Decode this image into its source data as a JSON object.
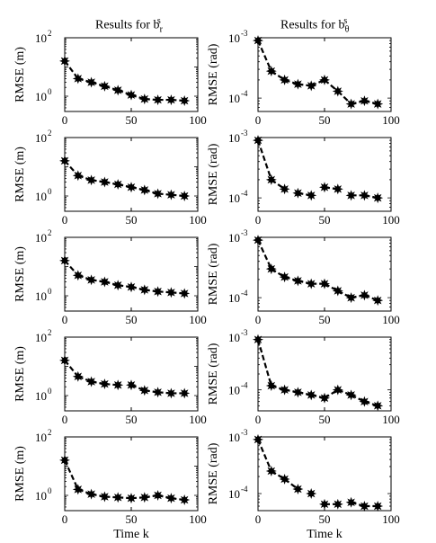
{
  "column_titles": [
    {
      "text": "Results for b",
      "sup": "s",
      "sub": "r"
    },
    {
      "text": "Results for b",
      "sup": "s",
      "sub": "θ"
    }
  ],
  "chart_data": [
    {
      "type": "line",
      "panel": "r1-left",
      "ylabel": "RMSE (m)",
      "yscale": "log",
      "ylim": [
        0.3,
        100
      ],
      "xlim": [
        0,
        100
      ],
      "yticks": [
        {
          "v": 1,
          "label": "10",
          "exp": "0"
        },
        {
          "v": 100,
          "label": "10",
          "exp": "2"
        }
      ],
      "xticks": [
        0,
        50,
        100
      ],
      "xtick_labels": [
        "0",
        "50",
        "100"
      ],
      "xlabel": "",
      "x": [
        0,
        10,
        20,
        30,
        40,
        50,
        60,
        70,
        80,
        90
      ],
      "segments": [
        [
          0,
          1
        ],
        [
          1,
          2
        ],
        [
          2,
          3
        ],
        [
          3,
          4
        ],
        [
          4,
          5
        ],
        [
          5,
          6
        ],
        [
          6,
          7
        ],
        [
          7,
          8
        ],
        [
          8,
          9
        ]
      ],
      "values": [
        16,
        4,
        3,
        2.2,
        1.6,
        1.1,
        0.8,
        0.75,
        0.75,
        0.7
      ]
    },
    {
      "type": "line",
      "panel": "r1-right",
      "ylabel": "RMSE (rad)",
      "yscale": "log",
      "ylim": [
        6e-05,
        0.001
      ],
      "xlim": [
        0,
        100
      ],
      "yticks": [
        {
          "v": 0.0001,
          "label": "10",
          "exp": "-4"
        },
        {
          "v": 0.001,
          "label": "10",
          "exp": "-3"
        }
      ],
      "xticks": [
        0,
        50,
        100
      ],
      "xtick_labels": [
        "0",
        "50",
        "100"
      ],
      "xlabel": "",
      "x": [
        0,
        10,
        20,
        30,
        40,
        50,
        60,
        70,
        80,
        90
      ],
      "segments": [
        [
          0,
          1
        ],
        [
          1,
          2
        ],
        [
          2,
          3
        ],
        [
          3,
          4
        ],
        [
          4,
          5
        ],
        [
          5,
          6
        ],
        [
          6,
          7
        ],
        [
          7,
          8
        ],
        [
          8,
          9
        ]
      ],
      "values": [
        0.0009,
        0.00028,
        0.0002,
        0.00017,
        0.00016,
        0.0002,
        0.00013,
        8e-05,
        9e-05,
        8e-05
      ]
    },
    {
      "type": "line",
      "panel": "r2-left",
      "ylabel": "RMSE (m)",
      "yscale": "log",
      "ylim": [
        0.3,
        100
      ],
      "xlim": [
        0,
        100
      ],
      "yticks": [
        {
          "v": 1,
          "label": "10",
          "exp": "0"
        },
        {
          "v": 100,
          "label": "10",
          "exp": "2"
        }
      ],
      "xticks": [
        0,
        50,
        100
      ],
      "xtick_labels": [
        "0",
        "50",
        "100"
      ],
      "xlabel": "",
      "x": [
        0,
        10,
        20,
        30,
        40,
        50,
        60,
        70,
        80,
        90
      ],
      "segments": [
        [
          0,
          1
        ],
        [
          1,
          2
        ],
        [
          2,
          3
        ],
        [
          3,
          4
        ],
        [
          4,
          5
        ],
        [
          5,
          6
        ],
        [
          6,
          7
        ],
        [
          7,
          8
        ],
        [
          8,
          9
        ]
      ],
      "values": [
        16,
        5,
        3.5,
        3,
        2.5,
        2,
        1.6,
        1.2,
        1.1,
        1
      ]
    },
    {
      "type": "line",
      "panel": "r2-right",
      "ylabel": "RMSE (rad)",
      "yscale": "log",
      "ylim": [
        6e-05,
        0.001
      ],
      "xlim": [
        0,
        100
      ],
      "yticks": [
        {
          "v": 0.0001,
          "label": "10",
          "exp": "-4"
        },
        {
          "v": 0.001,
          "label": "10",
          "exp": "-3"
        }
      ],
      "xticks": [
        0,
        50,
        100
      ],
      "xtick_labels": [
        "0",
        "50",
        "100"
      ],
      "xlabel": "",
      "x": [
        0,
        10,
        20,
        30,
        40,
        50,
        60,
        70,
        80,
        90
      ],
      "segments": [
        [
          0,
          1
        ],
        [
          1,
          2
        ],
        [
          3,
          4
        ],
        [
          5,
          6
        ],
        [
          7,
          8
        ],
        [
          8,
          9
        ]
      ],
      "values": [
        0.0009,
        0.0002,
        0.00014,
        0.00012,
        0.00011,
        0.00015,
        0.00014,
        0.00011,
        0.00011,
        0.0001
      ]
    },
    {
      "type": "line",
      "panel": "r3-left",
      "ylabel": "RMSE (m)",
      "yscale": "log",
      "ylim": [
        0.3,
        100
      ],
      "xlim": [
        0,
        100
      ],
      "yticks": [
        {
          "v": 1,
          "label": "10",
          "exp": "0"
        },
        {
          "v": 100,
          "label": "10",
          "exp": "2"
        }
      ],
      "xticks": [
        0,
        50,
        100
      ],
      "xtick_labels": [
        "0",
        "50",
        "100"
      ],
      "xlabel": "",
      "x": [
        0,
        10,
        20,
        30,
        40,
        50,
        60,
        70,
        80,
        90
      ],
      "segments": [
        [
          0,
          1
        ],
        [
          1,
          2
        ],
        [
          2,
          3
        ],
        [
          3,
          4
        ],
        [
          4,
          5
        ],
        [
          5,
          6
        ],
        [
          6,
          7
        ],
        [
          7,
          8
        ],
        [
          8,
          9
        ]
      ],
      "values": [
        16,
        5,
        3.5,
        3,
        2.3,
        2,
        1.6,
        1.4,
        1.3,
        1.2
      ]
    },
    {
      "type": "line",
      "panel": "r3-right",
      "ylabel": "RMSE (rad)",
      "yscale": "log",
      "ylim": [
        6e-05,
        0.001
      ],
      "xlim": [
        0,
        100
      ],
      "yticks": [
        {
          "v": 0.0001,
          "label": "10",
          "exp": "-4"
        },
        {
          "v": 0.001,
          "label": "10",
          "exp": "-3"
        }
      ],
      "xticks": [
        0,
        50,
        100
      ],
      "xtick_labels": [
        "0",
        "50",
        "100"
      ],
      "xlabel": "",
      "x": [
        0,
        10,
        20,
        30,
        40,
        50,
        60,
        70,
        80,
        90
      ],
      "segments": [
        [
          0,
          1
        ],
        [
          1,
          2
        ],
        [
          2,
          3
        ],
        [
          3,
          4
        ],
        [
          4,
          5
        ],
        [
          5,
          6
        ],
        [
          6,
          7
        ],
        [
          7,
          8
        ],
        [
          8,
          9
        ]
      ],
      "values": [
        0.0009,
        0.0003,
        0.00022,
        0.00019,
        0.00017,
        0.00017,
        0.00013,
        0.0001,
        0.00011,
        9e-05
      ]
    },
    {
      "type": "line",
      "panel": "r4-left",
      "ylabel": "RMSE (m)",
      "yscale": "log",
      "ylim": [
        0.3,
        100
      ],
      "xlim": [
        0,
        100
      ],
      "yticks": [
        {
          "v": 1,
          "label": "10",
          "exp": "0"
        },
        {
          "v": 100,
          "label": "10",
          "exp": "2"
        }
      ],
      "xticks": [
        0,
        50,
        100
      ],
      "xtick_labels": [
        "0",
        "50",
        "100"
      ],
      "xlabel": "",
      "x": [
        0,
        10,
        20,
        30,
        40,
        50,
        60,
        70,
        80,
        90
      ],
      "segments": [
        [
          0,
          1
        ],
        [
          1,
          2
        ],
        [
          2,
          3
        ],
        [
          3,
          4
        ],
        [
          5,
          6
        ],
        [
          6,
          7
        ],
        [
          7,
          8
        ],
        [
          8,
          9
        ]
      ],
      "values": [
        16,
        4.5,
        3,
        2.5,
        2.3,
        2.3,
        1.5,
        1.3,
        1.2,
        1.2
      ]
    },
    {
      "type": "line",
      "panel": "r4-right",
      "ylabel": "RMSE (rad)",
      "yscale": "log",
      "ylim": [
        4e-05,
        0.001
      ],
      "xlim": [
        0,
        100
      ],
      "yticks": [
        {
          "v": 0.0001,
          "label": "10",
          "exp": "-4"
        },
        {
          "v": 0.001,
          "label": "10",
          "exp": "-3"
        }
      ],
      "xticks": [
        0,
        50,
        100
      ],
      "xtick_labels": [
        "0",
        "50",
        "100"
      ],
      "xlabel": "",
      "x": [
        0,
        10,
        20,
        30,
        40,
        50,
        60,
        70,
        80,
        90
      ],
      "segments": [
        [
          0,
          1
        ],
        [
          1,
          2
        ],
        [
          2,
          3
        ],
        [
          3,
          4
        ],
        [
          4,
          5
        ],
        [
          5,
          6
        ],
        [
          6,
          7
        ],
        [
          7,
          8
        ],
        [
          8,
          9
        ]
      ],
      "values": [
        0.0009,
        0.00012,
        0.0001,
        9e-05,
        8e-05,
        7e-05,
        0.0001,
        8e-05,
        6e-05,
        5e-05
      ]
    },
    {
      "type": "line",
      "panel": "r5-left",
      "ylabel": "RMSE (m)",
      "yscale": "log",
      "ylim": [
        0.3,
        100
      ],
      "xlim": [
        0,
        100
      ],
      "yticks": [
        {
          "v": 1,
          "label": "10",
          "exp": "0"
        },
        {
          "v": 100,
          "label": "10",
          "exp": "2"
        }
      ],
      "xticks": [
        0,
        50,
        100
      ],
      "xtick_labels": [
        "0",
        "50",
        "100"
      ],
      "xlabel": "Time k",
      "x": [
        0,
        10,
        20,
        30,
        40,
        50,
        60,
        70,
        80,
        90
      ],
      "segments": [
        [
          0,
          1
        ],
        [
          1,
          2
        ],
        [
          2,
          3
        ],
        [
          3,
          4
        ],
        [
          4,
          5
        ],
        [
          5,
          6
        ],
        [
          6,
          7
        ],
        [
          7,
          8
        ],
        [
          8,
          9
        ]
      ],
      "values": [
        16,
        1.6,
        1.1,
        0.9,
        0.85,
        0.8,
        0.85,
        1,
        0.8,
        0.7
      ]
    },
    {
      "type": "line",
      "panel": "r5-right",
      "ylabel": "RMSE (rad)",
      "yscale": "log",
      "ylim": [
        5e-05,
        0.001
      ],
      "xlim": [
        0,
        100
      ],
      "yticks": [
        {
          "v": 0.0001,
          "label": "10",
          "exp": "-4"
        },
        {
          "v": 0.001,
          "label": "10",
          "exp": "-3"
        }
      ],
      "xticks": [
        0,
        50,
        100
      ],
      "xtick_labels": [
        "0",
        "50",
        "100"
      ],
      "xlabel": "Time k",
      "x": [
        0,
        10,
        20,
        30,
        40,
        50,
        60,
        70,
        80,
        90
      ],
      "segments": [
        [
          0,
          1
        ],
        [
          1,
          2
        ],
        [
          2,
          3
        ],
        [
          5,
          6
        ],
        [
          7,
          8
        ],
        [
          8,
          9
        ]
      ],
      "values": [
        0.0009,
        0.00025,
        0.00018,
        0.00012,
        0.0001,
        6.5e-05,
        6.5e-05,
        7e-05,
        6e-05,
        6e-05
      ]
    }
  ]
}
